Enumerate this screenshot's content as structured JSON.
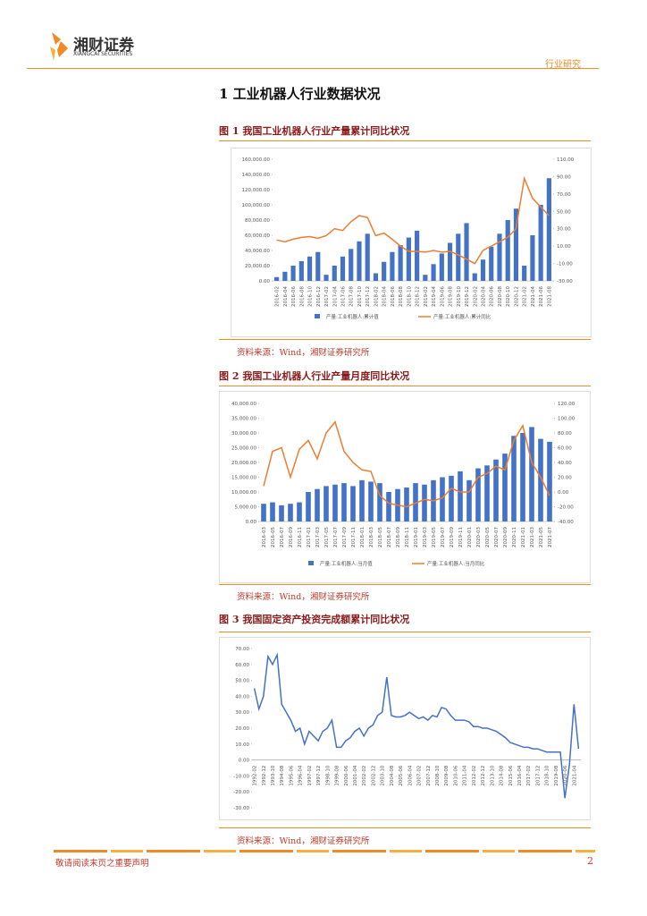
{
  "header": {
    "brand": "湘财证券",
    "brand_en": "XIANGCAI SECURITIES",
    "category": "行业研究"
  },
  "section_title": "1 工业机器人行业数据状况",
  "chart_data": [
    {
      "type": "combo",
      "title": "图 1 我国工业机器人行业产量累计同比状况",
      "source": "资料来源：Wind，湘财证券研究所",
      "categories": [
        "2016-02",
        "2016-04",
        "2016-06",
        "2016-08",
        "2016-10",
        "2016-12",
        "2017-02",
        "2017-04",
        "2017-06",
        "2017-08",
        "2017-10",
        "2017-12",
        "2018-02",
        "2018-04",
        "2018-06",
        "2018-08",
        "2018-10",
        "2018-12",
        "2019-02",
        "2019-04",
        "2019-06",
        "2019-08",
        "2019-10",
        "2019-12",
        "2020-02",
        "2020-04",
        "2020-06",
        "2020-08",
        "2020-10",
        "2020-12",
        "2021-02",
        "2021-04",
        "2021-06",
        "2021-08"
      ],
      "series": [
        {
          "name": "产量:工业机器人:累计值",
          "type": "bar",
          "color": "#4472c4",
          "axis": "y",
          "values": [
            5000,
            12000,
            20000,
            26000,
            32000,
            38000,
            8000,
            20000,
            32000,
            42000,
            52000,
            62000,
            10000,
            25000,
            38000,
            47000,
            57000,
            66000,
            8000,
            22000,
            36000,
            50000,
            62000,
            76000,
            10000,
            28000,
            45000,
            62000,
            80000,
            95000,
            20000,
            60000,
            100000,
            135000
          ]
        },
        {
          "name": "产量:工业机器人:累计同比",
          "type": "line",
          "color": "#ed7d31",
          "axis": "y2",
          "values": [
            17,
            15,
            18,
            20,
            21,
            19,
            22,
            30,
            28,
            38,
            45,
            43,
            22,
            25,
            18,
            10,
            4,
            4,
            3,
            5,
            3,
            4,
            0,
            -5,
            -10,
            5,
            10,
            15,
            20,
            30,
            88,
            65,
            55,
            45
          ]
        }
      ],
      "ylim": [
        0,
        160000
      ],
      "yticks": [
        {
          "value": 0,
          "label": "0.00"
        },
        {
          "value": 20000,
          "label": "20,000.00"
        },
        {
          "value": 40000,
          "label": "40,000.00"
        },
        {
          "value": 60000,
          "label": "60,000.00"
        },
        {
          "value": 80000,
          "label": "80,000.00"
        },
        {
          "value": 100000,
          "label": "100,000.00"
        },
        {
          "value": 120000,
          "label": "120,000.00"
        },
        {
          "value": 140000,
          "label": "140,000.00"
        },
        {
          "value": 160000,
          "label": "160,000.00"
        }
      ],
      "y2lim": [
        -30,
        110
      ],
      "y2ticks": [
        {
          "value": -30,
          "label": "-30.00"
        },
        {
          "value": -10,
          "label": "-10.00"
        },
        {
          "value": 10,
          "label": "10.00"
        },
        {
          "value": 30,
          "label": "30.00"
        },
        {
          "value": 50,
          "label": "50.00"
        },
        {
          "value": 70,
          "label": "70.00"
        },
        {
          "value": 90,
          "label": "90.00"
        },
        {
          "value": 110,
          "label": "110.00"
        }
      ],
      "grid": false
    },
    {
      "type": "combo",
      "title": "图 2 我国工业机器人行业产量月度同比状况",
      "source": "资料来源：Wind，湘财证券研究所",
      "categories": [
        "2016-03",
        "2016-05",
        "2016-07",
        "2016-09",
        "2016-11",
        "2017-01",
        "2017-03",
        "2017-05",
        "2017-07",
        "2017-09",
        "2017-11",
        "2018-01",
        "2018-03",
        "2018-05",
        "2018-07",
        "2018-09",
        "2018-11",
        "2019-01",
        "2019-03",
        "2019-05",
        "2019-07",
        "2019-09",
        "2019-11",
        "2020-01",
        "2020-03",
        "2020-05",
        "2020-07",
        "2020-09",
        "2020-11",
        "2021-01",
        "2021-03",
        "2021-05",
        "2021-07"
      ],
      "series": [
        {
          "name": "产量:工业机器人:当月值",
          "type": "bar",
          "color": "#4472c4",
          "axis": "y",
          "values": [
            6000,
            6500,
            5500,
            6000,
            6500,
            10000,
            11000,
            12000,
            12500,
            13000,
            12000,
            14000,
            13500,
            13000,
            10000,
            11000,
            11500,
            13000,
            12500,
            14000,
            15000,
            15500,
            17000,
            14000,
            18000,
            19000,
            21000,
            23000,
            29000,
            30000,
            32000,
            28000,
            27000
          ]
        },
        {
          "name": "产量:工业机器人:当月同比",
          "type": "line",
          "color": "#ed7d31",
          "axis": "y2",
          "values": [
            8,
            55,
            60,
            20,
            58,
            70,
            45,
            80,
            95,
            55,
            40,
            30,
            28,
            -5,
            -15,
            -18,
            -20,
            -15,
            -10,
            -12,
            -8,
            5,
            0,
            0,
            20,
            25,
            35,
            30,
            70,
            90,
            40,
            20,
            -5
          ]
        }
      ],
      "ylim": [
        0,
        40000
      ],
      "yticks": [
        {
          "value": 0,
          "label": "0.00"
        },
        {
          "value": 5000,
          "label": "5,000.00"
        },
        {
          "value": 10000,
          "label": "10,000.00"
        },
        {
          "value": 15000,
          "label": "15,000.00"
        },
        {
          "value": 20000,
          "label": "20,000.00"
        },
        {
          "value": 25000,
          "label": "25,000.00"
        },
        {
          "value": 30000,
          "label": "30,000.00"
        },
        {
          "value": 35000,
          "label": "35,000.00"
        },
        {
          "value": 40000,
          "label": "40,000.00"
        }
      ],
      "y2lim": [
        -40,
        120
      ],
      "y2ticks": [
        {
          "value": -40,
          "label": "-40.00"
        },
        {
          "value": -20,
          "label": "-20.00"
        },
        {
          "value": 0,
          "label": "0.00"
        },
        {
          "value": 20,
          "label": "20.00"
        },
        {
          "value": 40,
          "label": "40.00"
        },
        {
          "value": 60,
          "label": "60.00"
        },
        {
          "value": 80,
          "label": "80.00"
        },
        {
          "value": 100,
          "label": "100.00"
        },
        {
          "value": 120,
          "label": "120.00"
        }
      ],
      "grid": false
    },
    {
      "type": "line",
      "title": "图 3 我国固定资产投资完成额累计同比状况",
      "source": "资料来源：Wind，湘财证券研究所",
      "categories": [
        "1992-02",
        null,
        "1992-12",
        null,
        "1993-10",
        null,
        "1994-08",
        null,
        "1995-06",
        null,
        "1996-04",
        null,
        "1997-02",
        null,
        "1997-12",
        null,
        "1998-10",
        null,
        "1999-08",
        null,
        "2000-06",
        null,
        "2001-04",
        null,
        "2002-02",
        null,
        "2002-12",
        null,
        "2003-10",
        null,
        "2004-08",
        null,
        "2005-06",
        null,
        "2006-04",
        null,
        "2007-02",
        null,
        "2007-12",
        null,
        "2008-10",
        null,
        "2009-08",
        null,
        "2010-06",
        null,
        "2011-04",
        null,
        "2012-02",
        null,
        "2012-12",
        null,
        "2013-10",
        null,
        "2014-08",
        null,
        "2015-06",
        null,
        "2016-04",
        null,
        "2017-02",
        null,
        "2017-12",
        null,
        "2018-10",
        null,
        "2019-08",
        null,
        "2020-06",
        null,
        "2021-04",
        null
      ],
      "series": [
        {
          "name": "固定资产投资完成额:累计同比",
          "color": "#4472c4",
          "values": [
            45,
            32,
            40,
            65,
            60,
            66,
            35,
            30,
            25,
            18,
            20,
            10,
            18,
            15,
            12,
            18,
            20,
            25,
            8,
            8,
            12,
            14,
            18,
            20,
            15,
            20,
            22,
            28,
            30,
            52,
            28,
            27,
            27,
            28,
            30,
            28,
            26,
            27,
            25,
            28,
            27,
            33,
            32,
            28,
            25,
            25,
            25,
            24,
            21,
            21,
            20,
            20,
            19,
            18,
            16,
            14,
            11,
            10,
            9,
            8,
            8,
            7,
            7,
            6,
            5,
            5,
            5,
            5,
            -24,
            -3,
            35,
            7
          ]
        }
      ],
      "ylim": [
        -30,
        70
      ],
      "yticks": [
        {
          "value": -30,
          "label": "-30.00"
        },
        {
          "value": -20,
          "label": "-20.00"
        },
        {
          "value": -10,
          "label": "-10.00"
        },
        {
          "value": 0,
          "label": "0.00"
        },
        {
          "value": 10,
          "label": "10.00"
        },
        {
          "value": 20,
          "label": "20.00"
        },
        {
          "value": 30,
          "label": "30.00"
        },
        {
          "value": 40,
          "label": "40.00"
        },
        {
          "value": 50,
          "label": "50.00"
        },
        {
          "value": 60,
          "label": "60.00"
        },
        {
          "value": 70,
          "label": "70.00"
        }
      ],
      "grid": false
    }
  ],
  "footer": {
    "disclaimer": "敬请阅读末页之重要声明",
    "page": 2
  }
}
